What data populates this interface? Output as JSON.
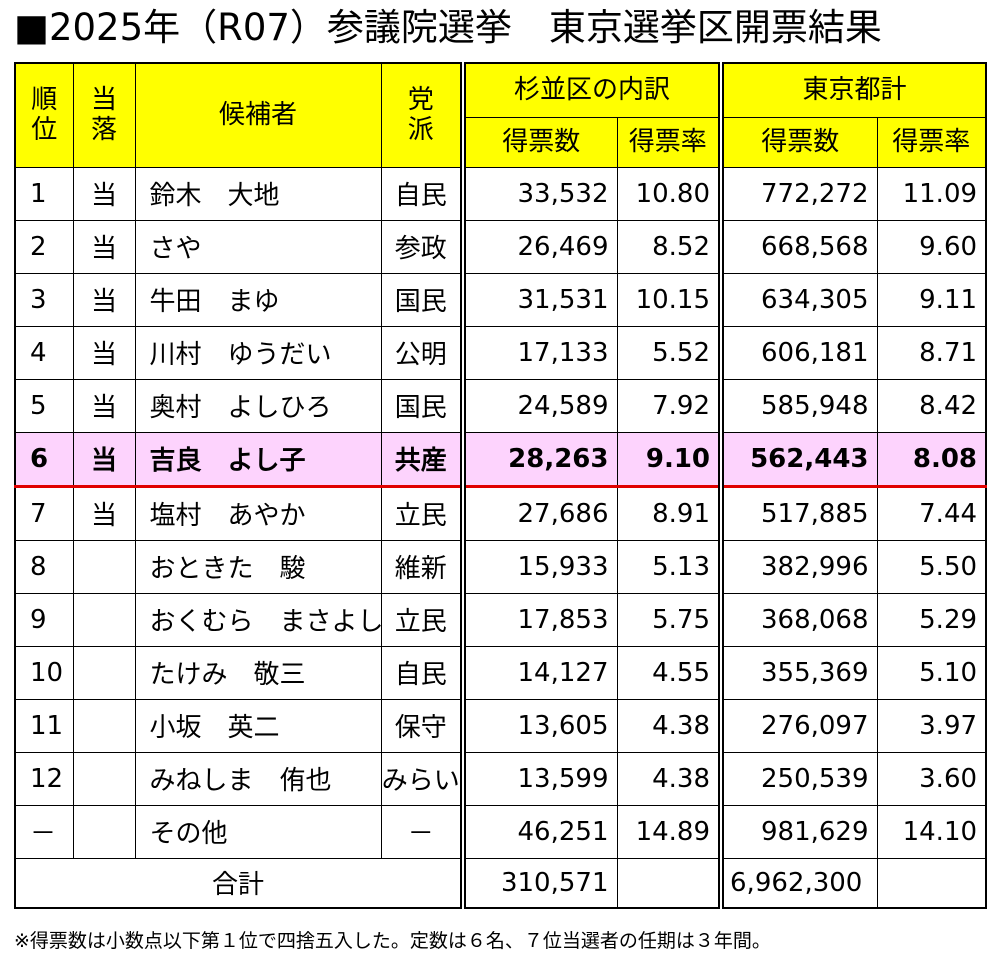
{
  "title": "■2025年（R07）参議院選挙　東京選挙区開票結果",
  "table": {
    "header": {
      "rank": "順位",
      "elected": "当落",
      "candidate": "候補者",
      "party": "党派",
      "suginami": "杉並区の内訳",
      "tokyo": "東京都計",
      "suginami_votes": "得票数",
      "suginami_rate": "得票率",
      "tokyo_votes": "得票数",
      "tokyo_rate": "得票率"
    },
    "rows": [
      {
        "rank": "1",
        "elected": "当",
        "name": "鈴木　大地",
        "party": "自民",
        "sv": "33,532",
        "sr": "10.80",
        "tv": "772,272",
        "tr": "11.09"
      },
      {
        "rank": "2",
        "elected": "当",
        "name": "さや",
        "party": "参政",
        "sv": "26,469",
        "sr": "8.52",
        "tv": "668,568",
        "tr": "9.60"
      },
      {
        "rank": "3",
        "elected": "当",
        "name": "牛田　まゆ",
        "party": "国民",
        "sv": "31,531",
        "sr": "10.15",
        "tv": "634,305",
        "tr": "9.11"
      },
      {
        "rank": "4",
        "elected": "当",
        "name": "川村　ゆうだい",
        "party": "公明",
        "sv": "17,133",
        "sr": "5.52",
        "tv": "606,181",
        "tr": "8.71"
      },
      {
        "rank": "5",
        "elected": "当",
        "name": "奥村　よしひろ",
        "party": "国民",
        "sv": "24,589",
        "sr": "7.92",
        "tv": "585,948",
        "tr": "8.42"
      },
      {
        "rank": "6",
        "elected": "当",
        "name": "吉良　よし子",
        "party": "共産",
        "sv": "28,263",
        "sr": "9.10",
        "tv": "562,443",
        "tr": "8.08"
      },
      {
        "rank": "7",
        "elected": "当",
        "name": "塩村　あやか",
        "party": "立民",
        "sv": "27,686",
        "sr": "8.91",
        "tv": "517,885",
        "tr": "7.44"
      },
      {
        "rank": "8",
        "name": "おときた　駿",
        "party": "維新",
        "sv": "15,933",
        "sr": "5.13",
        "tv": "382,996",
        "tr": "5.50"
      },
      {
        "rank": "9",
        "name": "おくむら　まさよし",
        "party": "立民",
        "sv": "17,853",
        "sr": "5.75",
        "tv": "368,068",
        "tr": "5.29"
      },
      {
        "rank": "10",
        "name": "たけみ　敬三",
        "party": "自民",
        "sv": "14,127",
        "sr": "4.55",
        "tv": "355,369",
        "tr": "5.10"
      },
      {
        "rank": "11",
        "name": "小坂　英二",
        "party": "保守",
        "sv": "13,605",
        "sr": "4.38",
        "tv": "276,097",
        "tr": "3.97"
      },
      {
        "rank": "12",
        "name": "みねしま　侑也",
        "party": "みらい",
        "sv": "13,599",
        "sr": "4.38",
        "tv": "250,539",
        "tr": "3.60"
      },
      {
        "rank": "－",
        "name": "その他",
        "party": "－",
        "sv": "46,251",
        "sr": "14.89",
        "tv": "981,629",
        "tr": "14.10"
      }
    ],
    "total": {
      "label": "合計",
      "sv": "310,571",
      "tv": "6,962,300"
    }
  },
  "footnote": "※得票数は小数点以下第１位で四捨五入した。定数は６名、７位当選者の任期は３年間。"
}
